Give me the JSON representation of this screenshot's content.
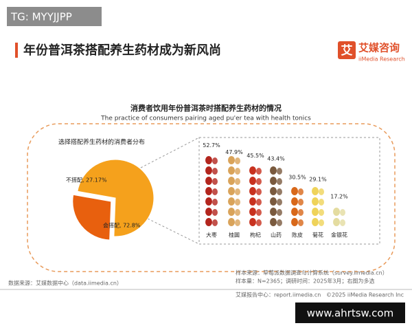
{
  "watermark_top": "TG: MYYJJPP",
  "header": {
    "title": "年份普洱茶搭配养生药材成为新风尚",
    "logo": "艾媒咨询",
    "logo_en": "iiMedia Research",
    "logo_mark": "艾"
  },
  "panel": {
    "title": "消费者饮用年份普洱茶时搭配养生药材的情况",
    "subtitle": "The practice of consumers pairing aged pu'er tea with health tonics"
  },
  "chart_data": [
    {
      "type": "pie",
      "title": "选择搭配养生药材的消费者分布",
      "values": [
        27.17,
        72.8
      ],
      "value_labels": [
        "不搭配, 27.17%",
        "会搭配, 72.8%"
      ],
      "colors": [
        "#e8600e",
        "#f5a11c"
      ]
    },
    {
      "type": "pictogram",
      "categories": [
        "大枣",
        "桂圆",
        "枸杞",
        "山药",
        "陈皮",
        "菊花",
        "金银花"
      ],
      "values": [
        52.7,
        47.9,
        45.5,
        43.4,
        30.5,
        29.1,
        17.2
      ],
      "value_labels": [
        "52.7%",
        "47.9%",
        "45.5%",
        "43.4%",
        "30.5%",
        "29.1%",
        "17.2%"
      ],
      "colors": [
        "#b3261e",
        "#d9a35a",
        "#c8321f",
        "#7a5a3e",
        "#d8681a",
        "#efd35a",
        "#e4dca0"
      ]
    }
  ],
  "footer": {
    "source": "数据来源：艾媒数据中心（data.iimedia.cn）",
    "sample_source": "样本来源：草莓派数据调查与计算系统（survey.iimedia.cn）",
    "sample": "样本量：N=2365；调研时间：2025年3月；右图为多选",
    "report": "艾媒报告中心：report.iimedia.cn",
    "copyright": "©2025  iiMedia Research  Inc"
  },
  "watermark_bottom": "www.ahrtsw.com"
}
